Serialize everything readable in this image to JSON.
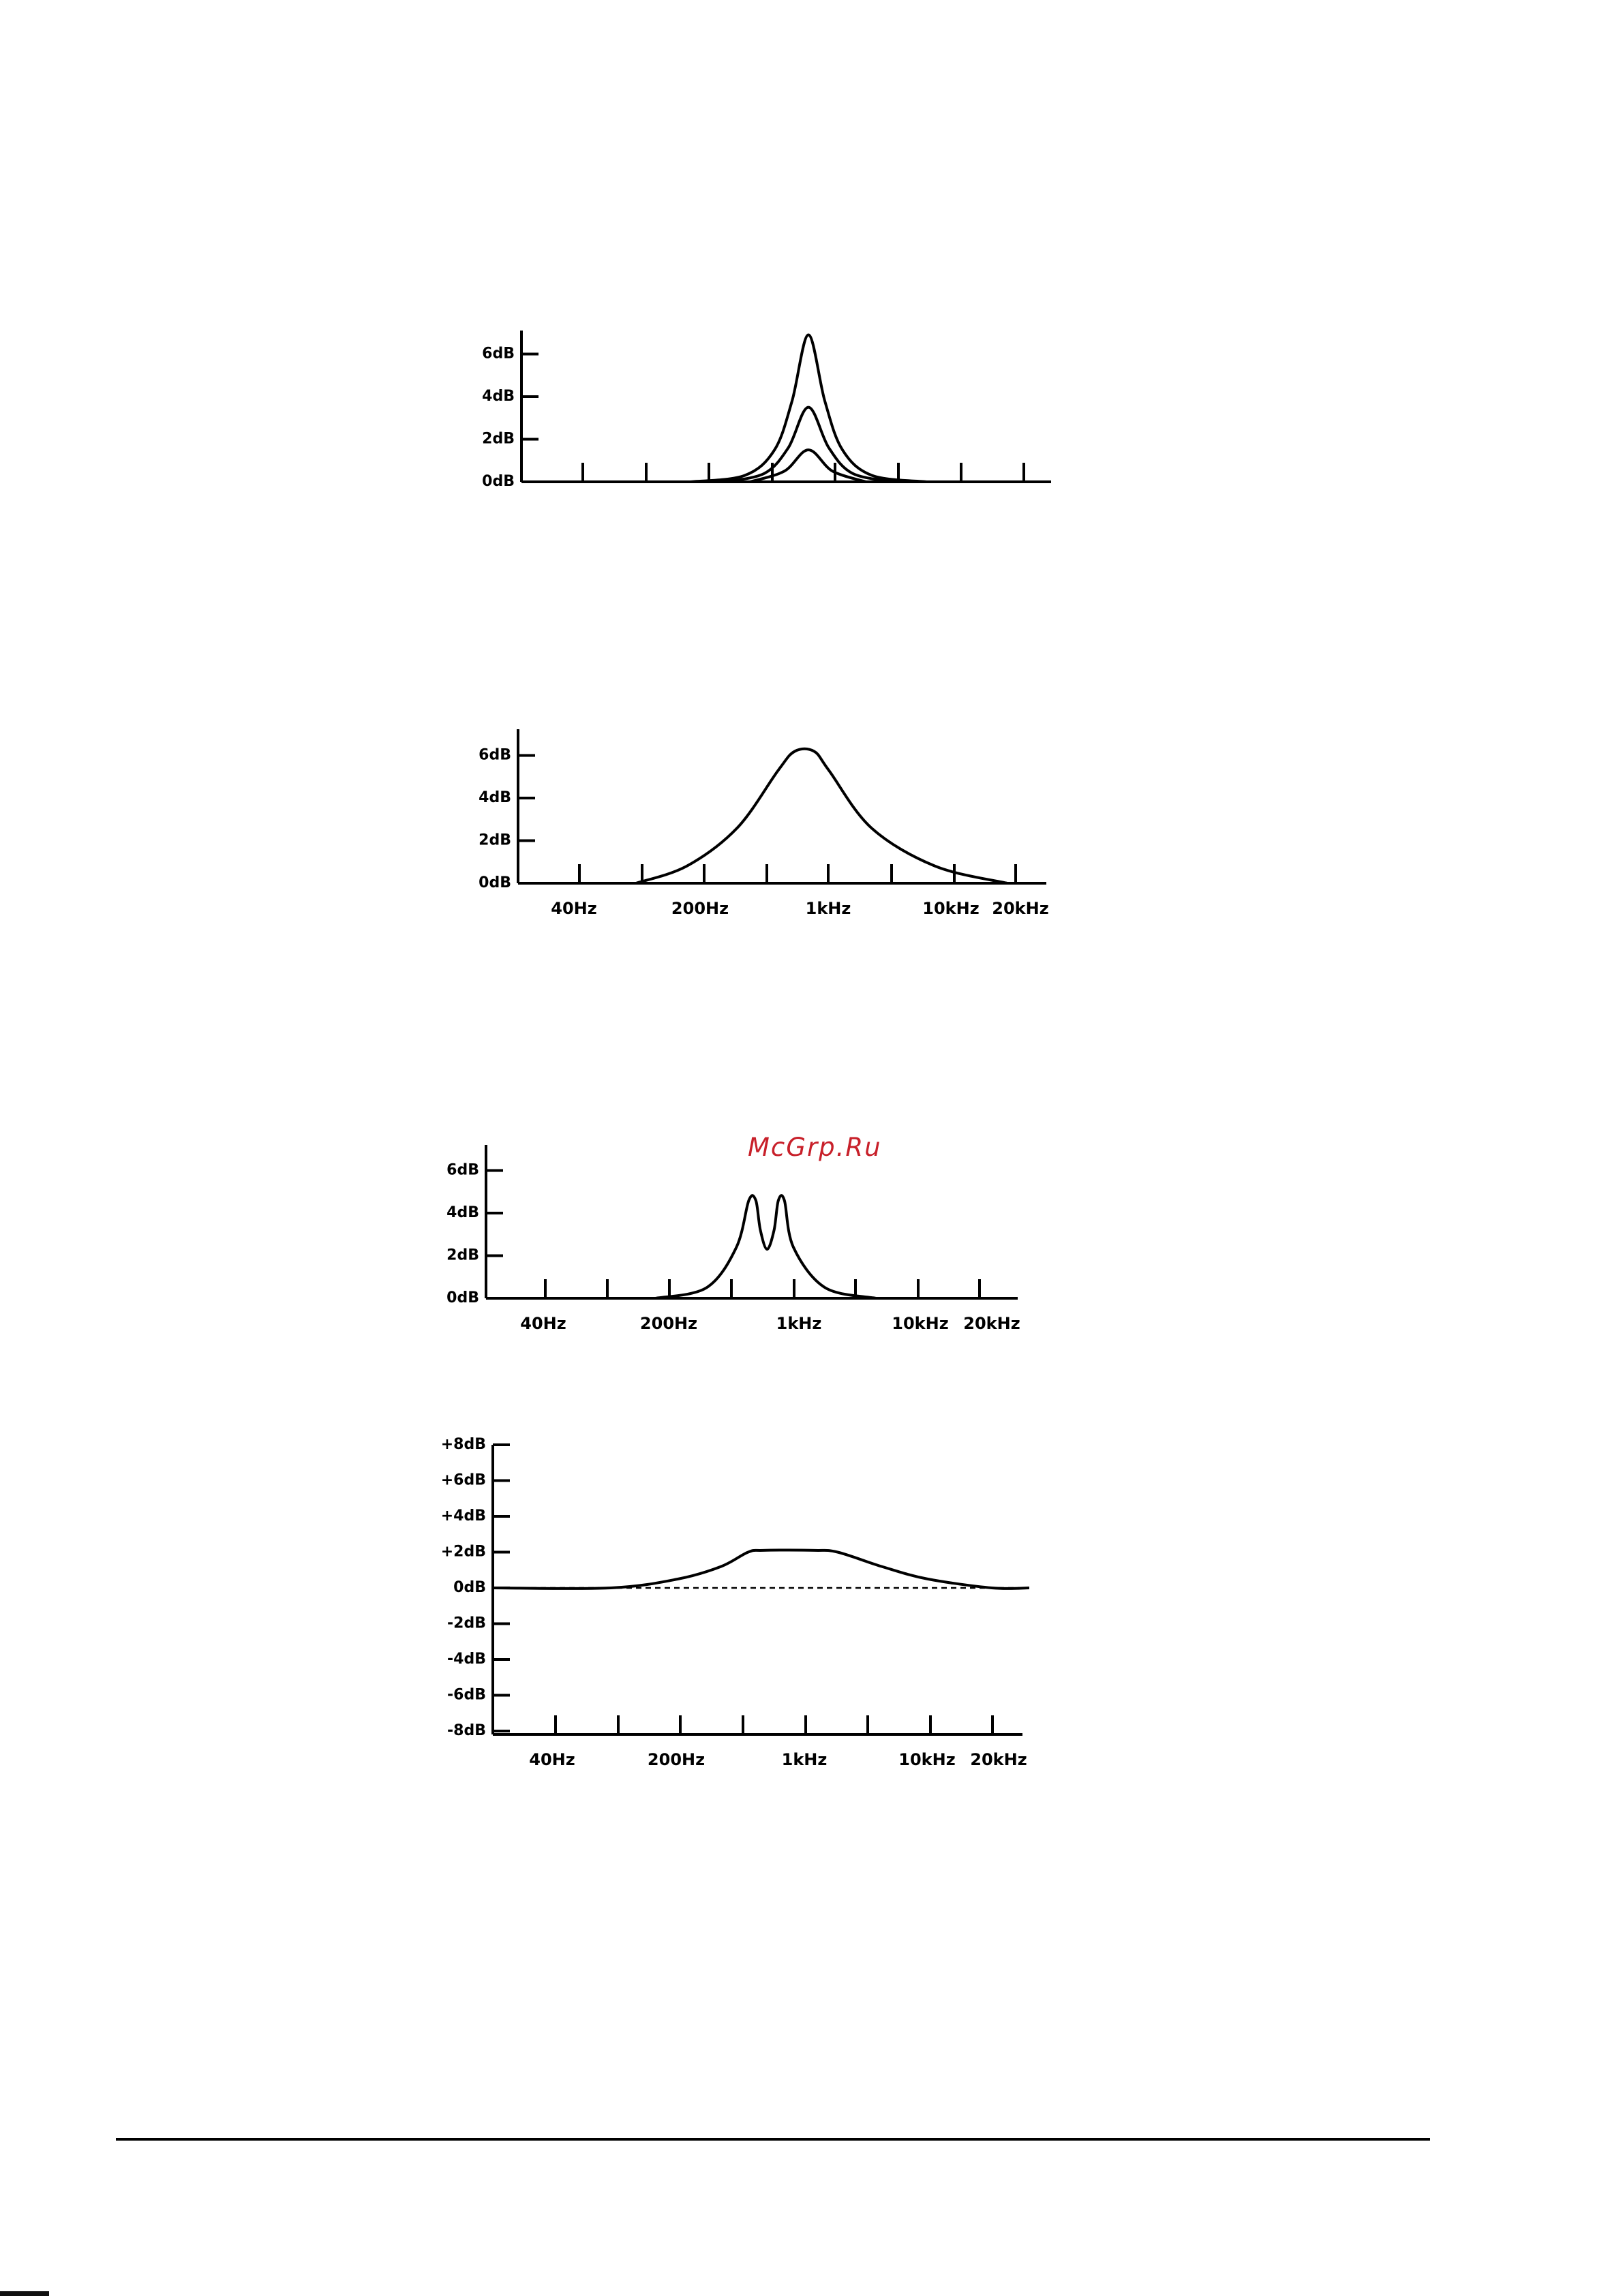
{
  "watermark": "McGrp.Ru",
  "chart_data": [
    {
      "type": "line",
      "ylabels": [
        "6dB",
        "4dB",
        "2dB",
        "0dB"
      ],
      "ylim": [
        0,
        7
      ],
      "xlabels": [],
      "series": [
        {
          "values": [
            [
              200,
              0
            ],
            [
              420,
              0.3
            ],
            [
              630,
              1.5
            ],
            [
              800,
              3.8
            ],
            [
              1000,
              6.9
            ],
            [
              1250,
              3.8
            ],
            [
              1590,
              1.5
            ],
            [
              2380,
              0.3
            ],
            [
              5000,
              0
            ]
          ]
        },
        {
          "values": [
            [
              320,
              0
            ],
            [
              550,
              0.4
            ],
            [
              760,
              1.6
            ],
            [
              1000,
              3.5
            ],
            [
              1320,
              1.6
            ],
            [
              1820,
              0.4
            ],
            [
              3200,
              0
            ]
          ]
        },
        {
          "values": [
            [
              450,
              0
            ],
            [
              720,
              0.5
            ],
            [
              1000,
              1.5
            ],
            [
              1390,
              0.5
            ],
            [
              2200,
              0
            ]
          ]
        }
      ]
    },
    {
      "type": "line",
      "ylabels": [
        "6dB",
        "4dB",
        "2dB",
        "0dB"
      ],
      "ylim": [
        0,
        7
      ],
      "xlabels": [
        "40Hz",
        "200Hz",
        "1kHz",
        "10kHz",
        "20kHz"
      ],
      "series": [
        {
          "values": [
            [
              100,
              0
            ],
            [
              200,
              0.8
            ],
            [
              400,
              2.6
            ],
            [
              700,
              5.3
            ],
            [
              880,
              6.2
            ],
            [
              1140,
              6.2
            ],
            [
              1400,
              5.3
            ],
            [
              2500,
              2.6
            ],
            [
              6000,
              0.8
            ],
            [
              16000,
              0
            ]
          ]
        }
      ]
    },
    {
      "type": "line",
      "ylabels": [
        "6dB",
        "4dB",
        "2dB",
        "0dB"
      ],
      "ylim": [
        0,
        7
      ],
      "xlabels": [
        "40Hz",
        "200Hz",
        "1kHz",
        "10kHz",
        "20kHz"
      ],
      "series": [
        {
          "values": [
            [
              200,
              0
            ],
            [
              400,
              0.5
            ],
            [
              600,
              2.4
            ],
            [
              710,
              4.6
            ],
            [
              780,
              4.6
            ],
            [
              830,
              3.2
            ],
            [
              910,
              2.3
            ],
            [
              1000,
              3.2
            ],
            [
              1060,
              4.6
            ],
            [
              1150,
              4.6
            ],
            [
              1300,
              2.4
            ],
            [
              2000,
              0.5
            ],
            [
              4000,
              0
            ]
          ]
        }
      ]
    },
    {
      "type": "line",
      "ylabels": [
        "+8dB",
        "+6dB",
        "+4dB",
        "+2dB",
        "0dB",
        "-2dB",
        "-4dB",
        "-6dB",
        "-8dB"
      ],
      "ylim": [
        -8,
        8
      ],
      "xlabels": [
        "40Hz",
        "200Hz",
        "1kHz",
        "10kHz",
        "20kHz"
      ],
      "series": [
        {
          "values": [
            [
              20,
              0
            ],
            [
              100,
              0
            ],
            [
              250,
              0.5
            ],
            [
              450,
              1.2
            ],
            [
              650,
              2.0
            ],
            [
              800,
              2.1
            ],
            [
              1600,
              2.1
            ],
            [
              2200,
              2.0
            ],
            [
              4000,
              1.2
            ],
            [
              7500,
              0.5
            ],
            [
              18000,
              0
            ],
            [
              30000,
              0
            ]
          ]
        }
      ],
      "reference_line": {
        "y": 0,
        "style": "dashed"
      }
    }
  ]
}
